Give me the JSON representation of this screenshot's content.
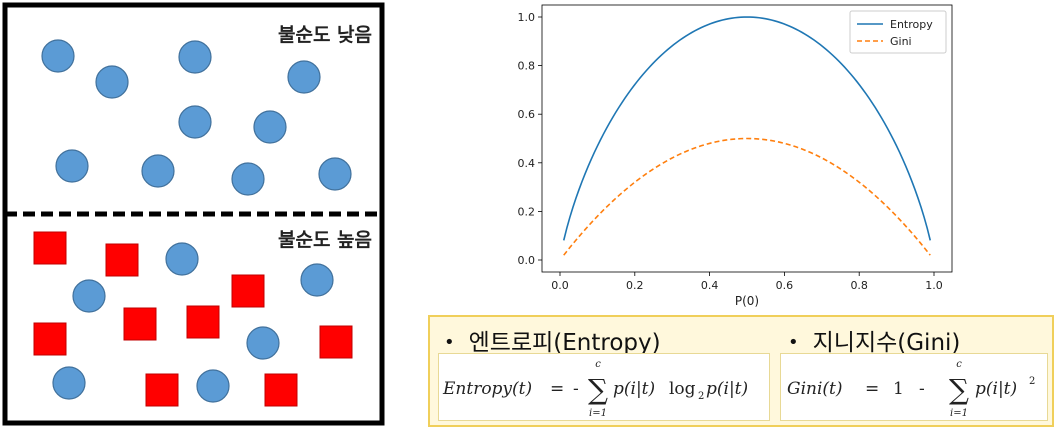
{
  "impurity": {
    "low_label": "불순도 낮음",
    "high_label": "불순도 높음",
    "colors": {
      "circle": "#5b9bd5",
      "square": "#ff0000"
    }
  },
  "chart_data": {
    "type": "line",
    "xlabel": "P(0)",
    "ylabel": "",
    "xlim": [
      0,
      1
    ],
    "ylim": [
      0,
      1
    ],
    "xticks": [
      "0.0",
      "0.2",
      "0.4",
      "0.6",
      "0.8",
      "1.0"
    ],
    "yticks": [
      "0.0",
      "0.2",
      "0.4",
      "0.6",
      "0.8",
      "1.0"
    ],
    "legend_position": "top-right",
    "grid": false,
    "x": [
      0.01,
      0.05,
      0.1,
      0.15,
      0.2,
      0.25,
      0.3,
      0.35,
      0.4,
      0.45,
      0.5,
      0.55,
      0.6,
      0.65,
      0.7,
      0.75,
      0.8,
      0.85,
      0.9,
      0.95,
      0.99
    ],
    "series": [
      {
        "name": "Entropy",
        "color": "#1f77b4",
        "style": "solid",
        "values": [
          0.081,
          0.286,
          0.469,
          0.61,
          0.722,
          0.811,
          0.881,
          0.934,
          0.971,
          0.993,
          1.0,
          0.993,
          0.971,
          0.934,
          0.881,
          0.811,
          0.722,
          0.61,
          0.469,
          0.286,
          0.081
        ]
      },
      {
        "name": "Gini",
        "color": "#ff7f0e",
        "style": "dashed",
        "values": [
          0.0198,
          0.095,
          0.18,
          0.255,
          0.32,
          0.375,
          0.42,
          0.455,
          0.48,
          0.495,
          0.5,
          0.495,
          0.48,
          0.455,
          0.42,
          0.375,
          0.32,
          0.255,
          0.18,
          0.095,
          0.0198
        ]
      }
    ]
  },
  "formulas": {
    "entropy": {
      "bullet": "•",
      "title": "엔트로피(Entropy)",
      "lhs": "Entropy(t)",
      "eq": "=",
      "minus": "-",
      "sum_sym": "∑",
      "sum_top": "c",
      "sum_bottom": "i=1",
      "p1": "p(i|t)",
      "log": "log",
      "log_sub": "2",
      "p2": "p(i|t)"
    },
    "gini": {
      "bullet": "•",
      "title": "지니지수(Gini)",
      "lhs": "Gini(t)",
      "eq": "=",
      "one": "1",
      "minus": "-",
      "sum_sym": "∑",
      "sum_top": "c",
      "sum_bottom": "i=1",
      "p1": "p(i|t)",
      "sup": "2"
    }
  }
}
